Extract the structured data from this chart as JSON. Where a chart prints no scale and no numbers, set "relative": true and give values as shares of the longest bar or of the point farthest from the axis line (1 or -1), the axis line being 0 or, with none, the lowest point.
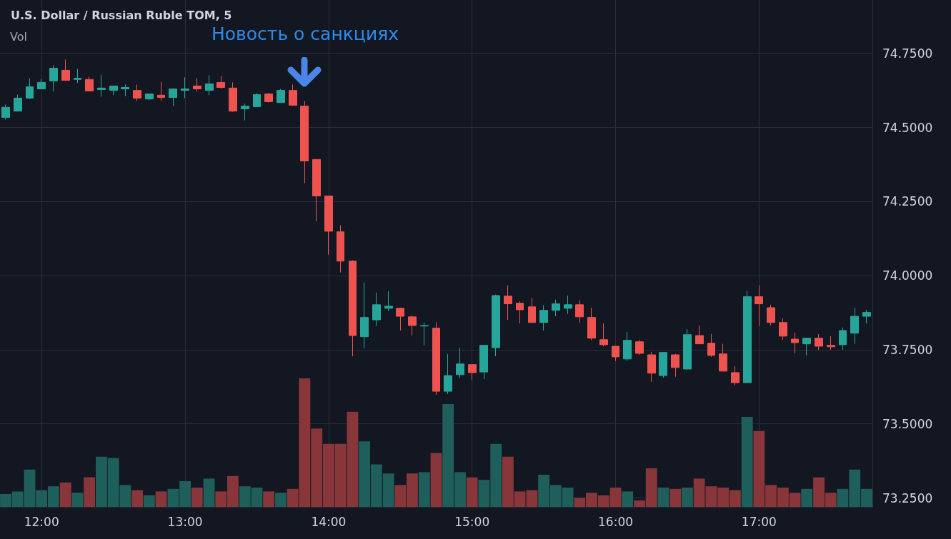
{
  "chart_data": [
    {
      "type": "candlestick",
      "title": "U.S. Dollar / Russian Ruble TOM, 5",
      "x": [
        11.75,
        11.833,
        11.917,
        12,
        12.083,
        12.167,
        12.25,
        12.333,
        12.417,
        12.5,
        12.583,
        12.667,
        12.75,
        12.833,
        12.917,
        13,
        13.083,
        13.167,
        13.25,
        13.333,
        13.417,
        13.5,
        13.583,
        13.667,
        13.75,
        13.833,
        13.917,
        14,
        14.083,
        14.167,
        14.25,
        14.333,
        14.417,
        14.5,
        14.583,
        14.667,
        14.75,
        14.833,
        14.917,
        15,
        15.083,
        15.167,
        15.25,
        15.333,
        15.417,
        15.5,
        15.583,
        15.667,
        15.75,
        15.833,
        15.917,
        16,
        16.083,
        16.167,
        16.25,
        16.333,
        16.417,
        16.5,
        16.583,
        16.667,
        16.75,
        16.833,
        16.917,
        17,
        17.083,
        17.167,
        17.25,
        17.333,
        17.417,
        17.5,
        17.583,
        17.667,
        17.75
      ],
      "ohlc": [
        [
          74.534,
          74.577,
          74.527,
          74.568
        ],
        [
          74.555,
          74.611,
          74.555,
          74.599
        ],
        [
          74.599,
          74.666,
          74.596,
          74.637
        ],
        [
          74.63,
          74.664,
          74.63,
          74.652
        ],
        [
          74.657,
          74.71,
          74.621,
          74.7
        ],
        [
          74.693,
          74.729,
          74.657,
          74.659
        ],
        [
          74.662,
          74.698,
          74.65,
          74.666
        ],
        [
          74.662,
          74.671,
          74.623,
          74.623
        ],
        [
          74.628,
          74.678,
          74.604,
          74.633
        ],
        [
          74.625,
          74.64,
          74.609,
          74.64
        ],
        [
          74.63,
          74.645,
          74.606,
          74.635
        ],
        [
          74.625,
          74.645,
          74.589,
          74.599
        ],
        [
          74.596,
          74.613,
          74.592,
          74.613
        ],
        [
          74.609,
          74.654,
          74.589,
          74.601
        ],
        [
          74.601,
          74.63,
          74.572,
          74.63
        ],
        [
          74.625,
          74.669,
          74.599,
          74.63
        ],
        [
          74.64,
          74.666,
          74.621,
          74.63
        ],
        [
          74.625,
          74.676,
          74.609,
          74.647
        ],
        [
          74.652,
          74.674,
          74.63,
          74.635
        ],
        [
          74.633,
          74.652,
          74.553,
          74.555
        ],
        [
          74.563,
          74.58,
          74.524,
          74.572
        ],
        [
          74.57,
          74.616,
          74.57,
          74.611
        ],
        [
          74.613,
          74.616,
          74.584,
          74.587
        ],
        [
          74.584,
          74.63,
          74.584,
          74.625
        ],
        [
          74.625,
          74.645,
          74.575,
          74.575
        ],
        [
          74.572,
          74.589,
          74.312,
          74.387
        ],
        [
          74.392,
          74.392,
          74.184,
          74.269
        ],
        [
          74.269,
          74.269,
          74.071,
          74.15
        ],
        [
          74.148,
          74.17,
          74.011,
          74.049
        ],
        [
          74.049,
          74.052,
          73.728,
          73.798
        ],
        [
          73.794,
          73.977,
          73.755,
          73.859
        ],
        [
          73.851,
          73.943,
          73.83,
          73.902
        ],
        [
          73.89,
          73.948,
          73.88,
          73.897
        ],
        [
          73.89,
          73.892,
          73.815,
          73.863
        ],
        [
          73.861,
          73.866,
          73.798,
          73.832
        ],
        [
          73.83,
          73.842,
          73.765,
          73.832
        ],
        [
          73.823,
          73.842,
          73.598,
          73.61
        ],
        [
          73.61,
          73.736,
          73.601,
          73.663
        ],
        [
          73.666,
          73.757,
          73.654,
          73.702
        ],
        [
          73.7,
          73.7,
          73.647,
          73.673
        ],
        [
          73.675,
          73.765,
          73.651,
          73.765
        ],
        [
          73.757,
          73.936,
          73.728,
          73.933
        ],
        [
          73.931,
          73.967,
          73.851,
          73.905
        ],
        [
          73.907,
          73.914,
          73.839,
          73.885
        ],
        [
          73.895,
          73.924,
          73.842,
          73.842
        ],
        [
          73.842,
          73.9,
          73.815,
          73.883
        ],
        [
          73.883,
          73.919,
          73.863,
          73.905
        ],
        [
          73.89,
          73.933,
          73.871,
          73.902
        ],
        [
          73.902,
          73.917,
          73.842,
          73.861
        ],
        [
          73.859,
          73.892,
          73.782,
          73.789
        ],
        [
          73.784,
          73.839,
          73.762,
          73.767
        ],
        [
          73.762,
          73.762,
          73.712,
          73.726
        ],
        [
          73.719,
          73.81,
          73.712,
          73.782
        ],
        [
          73.777,
          73.784,
          73.733,
          73.738
        ],
        [
          73.733,
          73.743,
          73.642,
          73.671
        ],
        [
          73.663,
          73.741,
          73.656,
          73.741
        ],
        [
          73.733,
          73.736,
          73.659,
          73.69
        ],
        [
          73.685,
          73.82,
          73.683,
          73.801
        ],
        [
          73.798,
          73.832,
          73.77,
          73.77
        ],
        [
          73.772,
          73.803,
          73.726,
          73.731
        ],
        [
          73.736,
          73.77,
          73.678,
          73.678
        ],
        [
          73.673,
          73.695,
          73.63,
          73.639
        ],
        [
          73.639,
          73.95,
          73.639,
          73.929
        ],
        [
          73.929,
          73.967,
          73.83,
          73.905
        ],
        [
          73.892,
          73.902,
          73.832,
          73.842
        ],
        [
          73.842,
          73.856,
          73.784,
          73.796
        ],
        [
          73.786,
          73.808,
          73.738,
          73.774
        ],
        [
          73.77,
          73.791,
          73.731,
          73.789
        ],
        [
          73.789,
          73.803,
          73.75,
          73.762
        ],
        [
          73.765,
          73.796,
          73.75,
          73.76
        ],
        [
          73.767,
          73.825,
          73.75,
          73.815
        ],
        [
          73.806,
          73.892,
          73.77,
          73.863
        ],
        [
          73.863,
          73.885,
          73.839,
          73.876
        ]
      ],
      "colors": [
        "#26a69a",
        "#26a69a",
        "#26a69a",
        "#26a69a",
        "#26a69a",
        "#ef5350",
        "#26a69a",
        "#ef5350",
        "#26a69a",
        "#26a69a",
        "#26a69a",
        "#ef5350",
        "#26a69a",
        "#ef5350",
        "#26a69a",
        "#26a69a",
        "#ef5350",
        "#26a69a",
        "#ef5350",
        "#ef5350",
        "#26a69a",
        "#26a69a",
        "#ef5350",
        "#26a69a",
        "#ef5350",
        "#ef5350",
        "#ef5350",
        "#ef5350",
        "#ef5350",
        "#ef5350",
        "#26a69a",
        "#26a69a",
        "#26a69a",
        "#ef5350",
        "#ef5350",
        "#26a69a",
        "#ef5350",
        "#26a69a",
        "#26a69a",
        "#ef5350",
        "#26a69a",
        "#26a69a",
        "#ef5350",
        "#ef5350",
        "#ef5350",
        "#26a69a",
        "#26a69a",
        "#26a69a",
        "#ef5350",
        "#ef5350",
        "#ef5350",
        "#ef5350",
        "#26a69a",
        "#ef5350",
        "#ef5350",
        "#26a69a",
        "#ef5350",
        "#26a69a",
        "#ef5350",
        "#ef5350",
        "#ef5350",
        "#ef5350",
        "#26a69a",
        "#ef5350",
        "#ef5350",
        "#ef5350",
        "#ef5350",
        "#26a69a",
        "#ef5350",
        "#ef5350",
        "#26a69a",
        "#26a69a",
        "#26a69a"
      ],
      "xlim": [
        11.71,
        17.79
      ],
      "xticks": [
        {
          "value": 12,
          "label": "12:00"
        },
        {
          "value": 13,
          "label": "13:00"
        },
        {
          "value": 14,
          "label": "14:00"
        },
        {
          "value": 15,
          "label": "15:00"
        },
        {
          "value": 16,
          "label": "16:00"
        },
        {
          "value": 17,
          "label": "17:00"
        }
      ],
      "ylim": [
        73.22,
        74.93
      ],
      "yticks": [
        {
          "value": 73.25,
          "label": "73.2500"
        },
        {
          "value": 73.5,
          "label": "73.5000"
        },
        {
          "value": 73.75,
          "label": "73.7500"
        },
        {
          "value": 74,
          "label": "74.0000"
        },
        {
          "value": 74.25,
          "label": "74.2500"
        },
        {
          "value": 74.5,
          "label": "74.5000"
        },
        {
          "value": 74.75,
          "label": "74.7500"
        }
      ],
      "grid": true,
      "annotations": [
        "Новость о санкциях"
      ]
    },
    {
      "type": "bar",
      "relative": true,
      "legend": "top left",
      "xlim": [
        11.71,
        17.79
      ],
      "x": [
        11.75,
        11.833,
        11.917,
        12,
        12.083,
        12.167,
        12.25,
        12.333,
        12.417,
        12.5,
        12.583,
        12.667,
        12.75,
        12.833,
        12.917,
        13,
        13.083,
        13.167,
        13.25,
        13.333,
        13.417,
        13.5,
        13.583,
        13.667,
        13.75,
        13.833,
        13.917,
        14,
        14.083,
        14.167,
        14.25,
        14.333,
        14.417,
        14.5,
        14.583,
        14.667,
        14.75,
        14.833,
        14.917,
        15,
        15.083,
        15.167,
        15.25,
        15.333,
        15.417,
        15.5,
        15.583,
        15.667,
        15.75,
        15.833,
        15.917,
        16,
        16.083,
        16.167,
        16.25,
        16.333,
        16.417,
        16.5,
        16.583,
        16.667,
        16.75,
        16.833,
        16.917,
        17,
        17.083,
        17.167,
        17.25,
        17.333,
        17.417,
        17.5,
        17.583,
        17.667,
        17.75
      ],
      "series": [
        {
          "name": "Vol",
          "values": [
            0.1,
            0.12,
            0.29,
            0.13,
            0.16,
            0.19,
            0.11,
            0.23,
            0.39,
            0.38,
            0.17,
            0.13,
            0.09,
            0.12,
            0.14,
            0.2,
            0.15,
            0.22,
            0.12,
            0.24,
            0.16,
            0.15,
            0.12,
            0.11,
            0.14,
            1,
            0.61,
            0.49,
            0.49,
            0.74,
            0.51,
            0.33,
            0.26,
            0.17,
            0.26,
            0.27,
            0.42,
            0.8,
            0.27,
            0.23,
            0.21,
            0.49,
            0.39,
            0.12,
            0.13,
            0.25,
            0.17,
            0.15,
            0.07,
            0.11,
            0.09,
            0.15,
            0.12,
            0.05,
            0.3,
            0.15,
            0.14,
            0.15,
            0.22,
            0.16,
            0.15,
            0.13,
            0.7,
            0.59,
            0.17,
            0.15,
            0.11,
            0.14,
            0.23,
            0.11,
            0.14,
            0.29,
            0.14
          ],
          "colors": [
            "#1e5f5b",
            "#1e5f5b",
            "#1e5f5b",
            "#1e5f5b",
            "#1e5f5b",
            "#89363b",
            "#1e5f5b",
            "#89363b",
            "#1e5f5b",
            "#1e5f5b",
            "#1e5f5b",
            "#89363b",
            "#1e5f5b",
            "#89363b",
            "#1e5f5b",
            "#1e5f5b",
            "#89363b",
            "#1e5f5b",
            "#89363b",
            "#89363b",
            "#1e5f5b",
            "#1e5f5b",
            "#89363b",
            "#1e5f5b",
            "#89363b",
            "#89363b",
            "#89363b",
            "#89363b",
            "#89363b",
            "#89363b",
            "#1e5f5b",
            "#1e5f5b",
            "#1e5f5b",
            "#89363b",
            "#89363b",
            "#1e5f5b",
            "#89363b",
            "#1e5f5b",
            "#1e5f5b",
            "#89363b",
            "#1e5f5b",
            "#1e5f5b",
            "#89363b",
            "#89363b",
            "#89363b",
            "#1e5f5b",
            "#1e5f5b",
            "#1e5f5b",
            "#89363b",
            "#89363b",
            "#89363b",
            "#89363b",
            "#1e5f5b",
            "#89363b",
            "#89363b",
            "#1e5f5b",
            "#89363b",
            "#1e5f5b",
            "#89363b",
            "#89363b",
            "#89363b",
            "#89363b",
            "#1e5f5b",
            "#89363b",
            "#89363b",
            "#89363b",
            "#89363b",
            "#1e5f5b",
            "#89363b",
            "#89363b",
            "#1e5f5b",
            "#1e5f5b",
            "#1e5f5b"
          ]
        }
      ]
    }
  ]
}
